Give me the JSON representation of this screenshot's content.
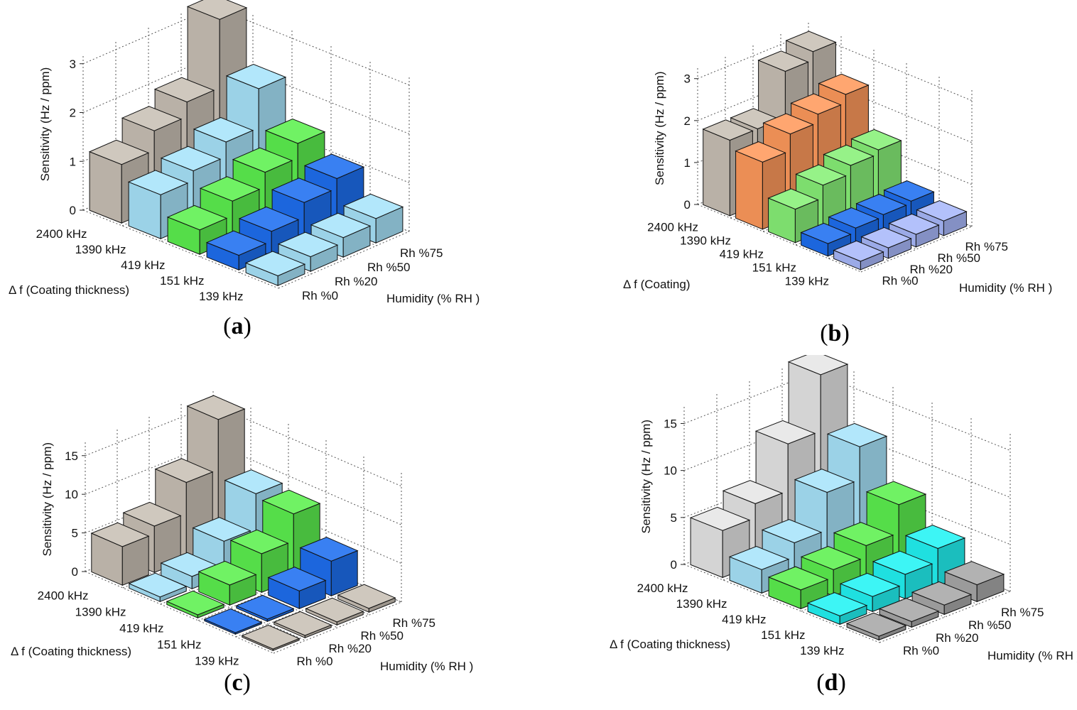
{
  "chart_data": [
    {
      "type": "bar3d",
      "panel": "a",
      "caption": "a",
      "zlabel": "Sensitivity  (Hz / ppm)",
      "xlabel": "Δ f  (Coating thickness)",
      "ylabel": "Humidity (% RH  )",
      "zticks": [
        "0",
        "1",
        "2",
        "3"
      ],
      "zmax": 3.2,
      "categories": [
        "2400 kHz",
        "1390 kHz",
        "419 kHz",
        "151 kHz",
        "139 kHz"
      ],
      "series_names": [
        "Rh %0",
        "Rh %20",
        "Rh %50",
        "Rh %75"
      ],
      "colors": [
        "#c9c0b5",
        "#a8e4fb",
        "#5cf04f",
        "#1e6ff0",
        "#a8e4fb"
      ],
      "values": [
        [
          1.2,
          1.6,
          1.9,
          3.3
        ],
        [
          0.9,
          1.1,
          1.4,
          2.2
        ],
        [
          0.5,
          0.8,
          1.1,
          1.4
        ],
        [
          0.3,
          0.5,
          0.8,
          1.0
        ],
        [
          0.2,
          0.3,
          0.4,
          0.5
        ]
      ]
    },
    {
      "type": "bar3d",
      "panel": "b",
      "caption": "b",
      "zlabel": "Sensitivity  (Hz / ppm)",
      "xlabel": "Δ f  (Coating)",
      "ylabel": "Humidity (% RH  )",
      "zticks": [
        "0",
        "1",
        "2",
        "3"
      ],
      "zmax": 3.3,
      "categories": [
        "2400 kHz",
        "1390 kHz",
        "419 kHz",
        "151 kHz",
        "139 kHz"
      ],
      "series_names": [
        "Rh %0",
        "Rh %20",
        "Rh %50",
        "Rh %75"
      ],
      "colors": [
        "#c9c0b5",
        "#ff9a5c",
        "#88f078",
        "#1e6ff0",
        "#a9b9fb"
      ],
      "values": [
        [
          1.8,
          1.8,
          2.9,
          3.1
        ],
        [
          1.6,
          2.0,
          2.2,
          2.4
        ],
        [
          0.8,
          1.1,
          1.3,
          1.4
        ],
        [
          0.3,
          0.4,
          0.45,
          0.5
        ],
        [
          0.2,
          0.25,
          0.3,
          0.35
        ]
      ]
    },
    {
      "type": "bar3d",
      "panel": "c",
      "caption": "c",
      "zlabel": "Sensitivity  (Hz / ppm)",
      "xlabel": "Δ f  (Coating thickness)",
      "ylabel": "Humidity (% RH  )",
      "zticks": [
        "0",
        "5",
        "10",
        "15"
      ],
      "zmax": 17,
      "categories": [
        "2400 kHz",
        "1390 kHz",
        "419 kHz",
        "151 kHz",
        "139 kHz"
      ],
      "series_names": [
        "Rh %0",
        "Rh %20",
        "Rh %50",
        "Rh %75"
      ],
      "colors": [
        "#c9c0b5",
        "#a8e4fb",
        "#5cf04f",
        "#1e6ff0",
        "#c9c0b5"
      ],
      "values": [
        [
          5.0,
          6.0,
          10.0,
          16.5
        ],
        [
          0.6,
          1.6,
          4.5,
          9.0
        ],
        [
          0.4,
          2.6,
          5.0,
          8.5
        ],
        [
          0.2,
          0.3,
          2.3,
          4.5
        ],
        [
          0.2,
          0.3,
          0.4,
          0.5
        ]
      ]
    },
    {
      "type": "bar3d",
      "panel": "d",
      "caption": "d",
      "zlabel": "Sensitivity  (Hz / ppm)",
      "xlabel": "Δ f  (Coating thickness)",
      "ylabel": "Humidity (% RH  )",
      "zticks": [
        "0",
        "5",
        "10",
        "15"
      ],
      "zmax": 17,
      "categories": [
        "2400 kHz",
        "1390 kHz",
        "419 kHz",
        "151 kHz",
        "139 kHz"
      ],
      "series_names": [
        "Rh %0",
        "Rh %20",
        "Rh %50",
        "Rh %75"
      ],
      "colors": [
        "#e6e6e6",
        "#a8e4fb",
        "#5cf04f",
        "#22f4f4",
        "#a8a8a8"
      ],
      "values": [
        [
          5.0,
          6.5,
          11.5,
          17.5
        ],
        [
          2.5,
          4.0,
          8.0,
          11.5
        ],
        [
          2.0,
          2.8,
          4.0,
          7.0
        ],
        [
          0.9,
          1.6,
          2.6,
          4.0
        ],
        [
          0.4,
          0.6,
          1.0,
          1.8
        ]
      ]
    }
  ]
}
